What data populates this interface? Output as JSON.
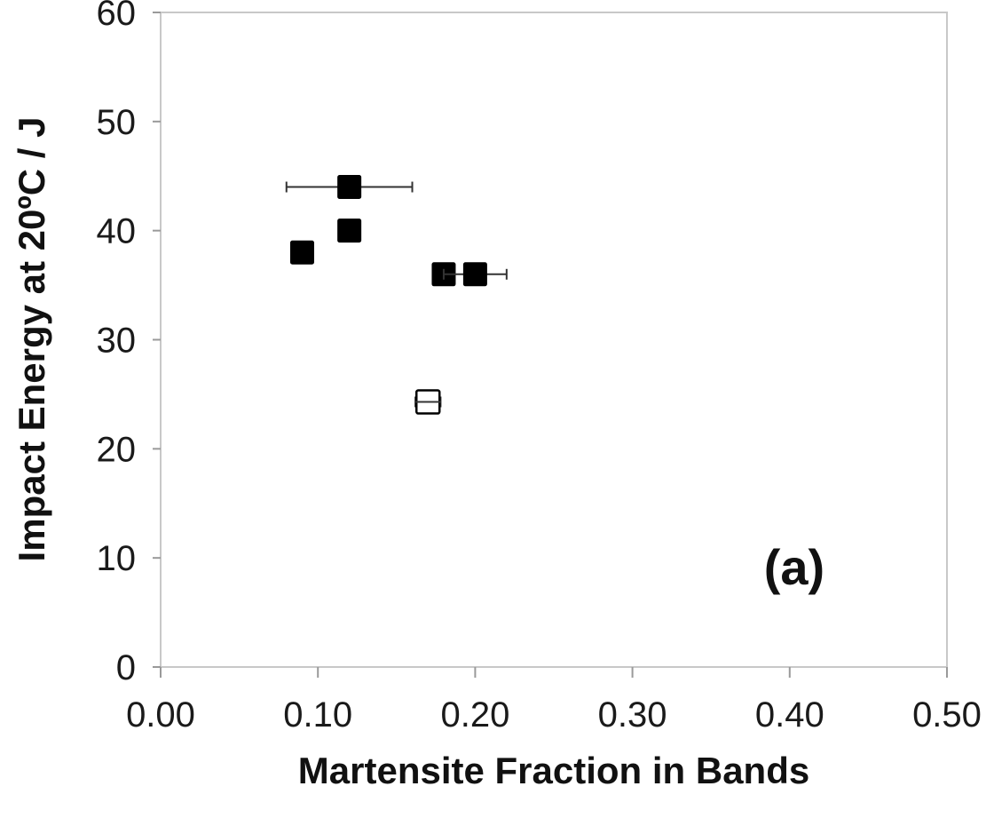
{
  "chart_data": {
    "type": "scatter",
    "title": "",
    "xlabel": "Martensite Fraction in Bands",
    "ylabel": "Impact Energy at 20ºC / J",
    "annotation": "(a)",
    "xlim": [
      0,
      0.5
    ],
    "ylim": [
      0,
      60
    ],
    "x_ticks": [
      "0.00",
      "0.10",
      "0.20",
      "0.30",
      "0.40",
      "0.50"
    ],
    "y_ticks": [
      "0",
      "10",
      "20",
      "30",
      "40",
      "50",
      "60"
    ],
    "grid": false,
    "legend": "none",
    "series": [
      {
        "marker": "filled-square",
        "color": "#000000",
        "points": [
          {
            "x": 0.12,
            "y": 44,
            "x_err": 0.04
          },
          {
            "x": 0.12,
            "y": 40,
            "x_err": 0.005
          },
          {
            "x": 0.09,
            "y": 38,
            "x_err": 0.005
          },
          {
            "x": 0.18,
            "y": 36,
            "x_err": 0.0
          },
          {
            "x": 0.2,
            "y": 36,
            "x_err": 0.02
          }
        ]
      },
      {
        "marker": "open-square",
        "color": "#000000",
        "points": [
          {
            "x": 0.17,
            "y": 24.3,
            "x_err": 0.008
          }
        ]
      }
    ]
  }
}
